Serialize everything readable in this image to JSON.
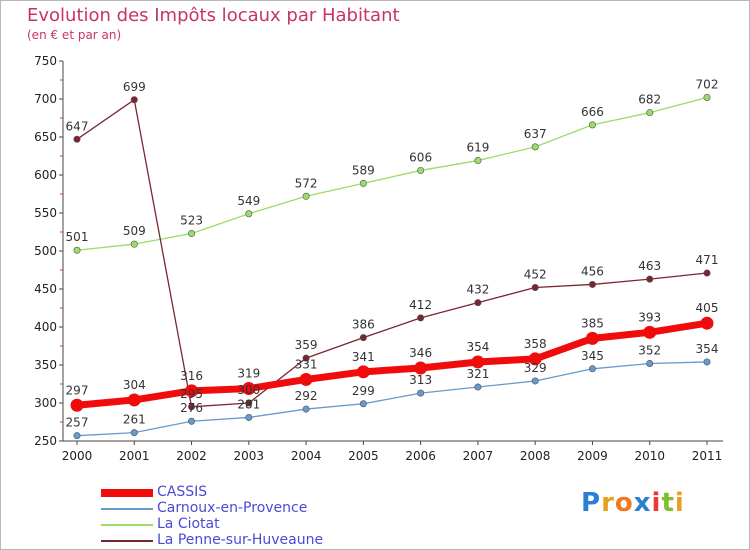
{
  "title": "Evolution des Impôts locaux par Habitant",
  "subtitle": "(en € et par an)",
  "logo": {
    "letters": [
      {
        "char": "P",
        "color": "#2a7fd4"
      },
      {
        "char": "r",
        "color": "#e8a020"
      },
      {
        "char": "o",
        "color": "#f07820"
      },
      {
        "char": "x",
        "color": "#2a7fd4"
      },
      {
        "char": "i",
        "color": "#e83a3a"
      },
      {
        "char": "t",
        "color": "#7cbf2a"
      },
      {
        "char": "i",
        "color": "#e8a020"
      }
    ]
  },
  "chart_data": {
    "type": "line",
    "title": "Evolution des Impôts locaux par Habitant",
    "subtitle": "(en € et par an)",
    "xlabel": "",
    "ylabel": "",
    "ylim": [
      250,
      750
    ],
    "yticks": [
      250,
      300,
      350,
      400,
      450,
      500,
      550,
      600,
      650,
      700,
      750
    ],
    "grid": false,
    "legend_position": "bottom-left",
    "categories": [
      "2000",
      "2001",
      "2002",
      "2003",
      "2004",
      "2005",
      "2006",
      "2007",
      "2008",
      "2009",
      "2010",
      "2011"
    ],
    "series": [
      {
        "name": "CASSIS",
        "color": "#f00c0c",
        "emphasis": "thick",
        "values": [
          297,
          304,
          316,
          319,
          331,
          341,
          346,
          354,
          358,
          385,
          393,
          405
        ]
      },
      {
        "name": "Carnoux-en-Provence",
        "color": "#6699cc",
        "emphasis": "thin",
        "values": [
          257,
          261,
          276,
          281,
          292,
          299,
          313,
          321,
          329,
          345,
          352,
          354
        ]
      },
      {
        "name": "La Ciotat",
        "color": "#99dd66",
        "emphasis": "thin",
        "values": [
          501,
          509,
          523,
          549,
          572,
          589,
          606,
          619,
          637,
          666,
          682,
          702
        ]
      },
      {
        "name": "La Penne-sur-Huveaune",
        "color": "#7a2630",
        "emphasis": "thin",
        "values": [
          647,
          699,
          295,
          300,
          359,
          386,
          412,
          432,
          452,
          456,
          463,
          471
        ]
      }
    ]
  }
}
